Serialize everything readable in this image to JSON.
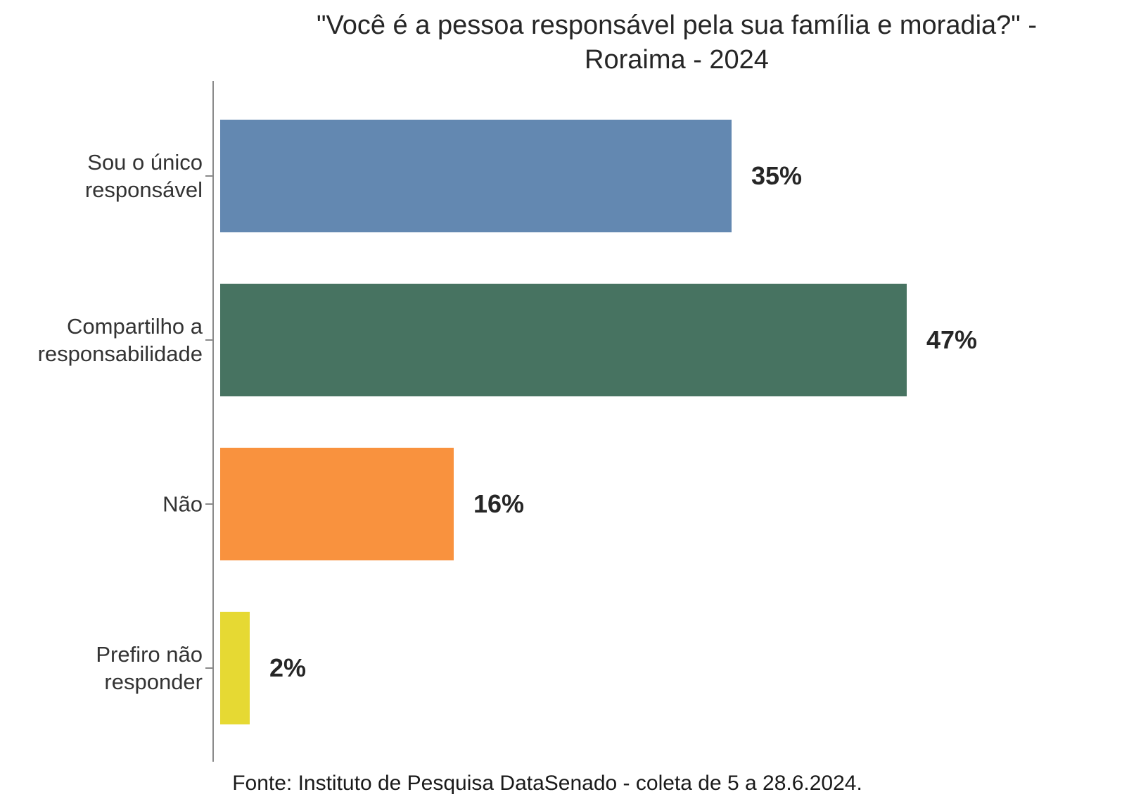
{
  "chart_data": {
    "type": "bar",
    "orientation": "horizontal",
    "title": "\"Você é a pessoa responsável pela sua família e moradia?\" - Roraima - 2024",
    "title_line1": "\"Você é a pessoa responsável pela sua família e moradia?\" -",
    "title_line2": "Roraima - 2024",
    "categories": [
      "Sou o único responsável",
      "Compartilho a responsabilidade",
      "Não",
      "Prefiro não responder"
    ],
    "values": [
      35,
      47,
      16,
      2
    ],
    "unit": "%",
    "legend": "none",
    "grid": "off",
    "bars": [
      {
        "label": "Sou o único\nresponsável",
        "value": 35,
        "value_label": "35%",
        "color": "#6388B1"
      },
      {
        "label": "Compartilho a\nresponsabilidade",
        "value": 47,
        "value_label": "47%",
        "color": "#477361"
      },
      {
        "label": "Não",
        "value": 16,
        "value_label": "16%",
        "color": "#F9923E"
      },
      {
        "label": "Prefiro não\nresponder",
        "value": 2,
        "value_label": "2%",
        "color": "#E6D933"
      }
    ],
    "axis_color": "#8a8a8a",
    "source": "Fonte: Instituto de Pesquisa DataSenado - coleta de 5 a 28.6.2024."
  }
}
